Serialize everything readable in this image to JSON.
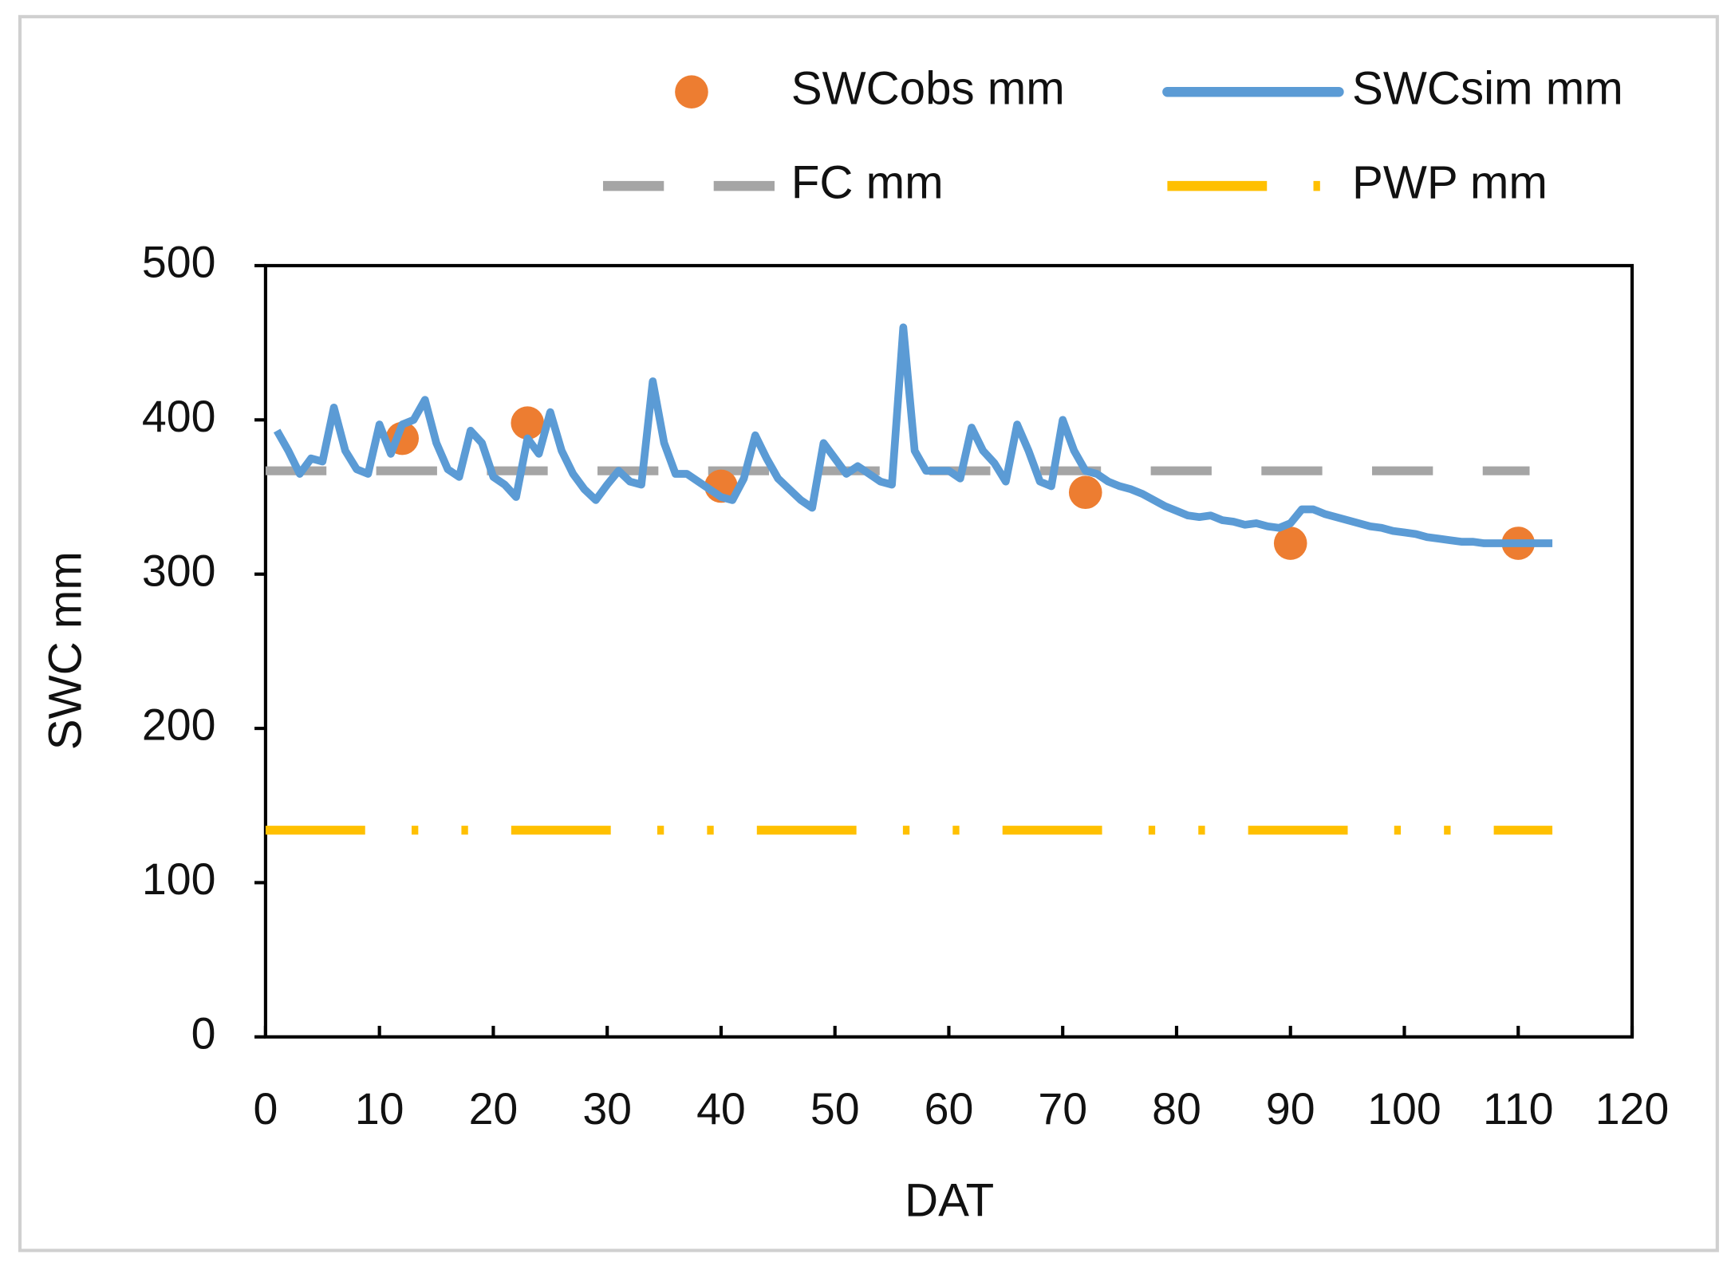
{
  "chart_data": {
    "type": "line",
    "xlabel": "DAT",
    "ylabel": "SWC mm",
    "xlim": [
      0,
      120
    ],
    "xticks": [
      0,
      10,
      20,
      30,
      40,
      50,
      60,
      70,
      80,
      90,
      100,
      110,
      120
    ],
    "ylim": [
      0,
      500
    ],
    "yticks": [
      0,
      100,
      200,
      300,
      400,
      500
    ],
    "legend": "top",
    "series": [
      {
        "name": "SWCobs mm",
        "type": "scatter",
        "color": "#ed7d31",
        "x": [
          12,
          23,
          40,
          72,
          90,
          110
        ],
        "values": [
          388,
          398,
          357,
          353,
          320,
          320
        ]
      },
      {
        "name": "SWCsim mm",
        "type": "line",
        "color": "#5b9bd5",
        "dash": "solid",
        "x": [
          1,
          2,
          3,
          4,
          5,
          6,
          7,
          8,
          9,
          10,
          11,
          12,
          13,
          14,
          15,
          16,
          17,
          18,
          19,
          20,
          21,
          22,
          23,
          24,
          25,
          26,
          27,
          28,
          29,
          30,
          31,
          32,
          33,
          34,
          35,
          36,
          37,
          38,
          39,
          40,
          41,
          42,
          43,
          44,
          45,
          46,
          47,
          48,
          49,
          50,
          51,
          52,
          53,
          54,
          55,
          56,
          57,
          58,
          59,
          60,
          61,
          62,
          63,
          64,
          65,
          66,
          67,
          68,
          69,
          70,
          71,
          72,
          73,
          74,
          75,
          76,
          77,
          78,
          79,
          80,
          81,
          82,
          83,
          84,
          85,
          86,
          87,
          88,
          89,
          90,
          91,
          92,
          93,
          94,
          95,
          96,
          97,
          98,
          99,
          100,
          101,
          102,
          103,
          104,
          105,
          106,
          107,
          108,
          109,
          110,
          111,
          112,
          113
        ],
        "values": [
          393,
          380,
          365,
          375,
          373,
          408,
          380,
          368,
          365,
          397,
          378,
          397,
          400,
          413,
          385,
          368,
          363,
          393,
          385,
          363,
          358,
          350,
          388,
          378,
          405,
          380,
          365,
          355,
          348,
          358,
          367,
          360,
          358,
          425,
          385,
          365,
          365,
          360,
          355,
          350,
          348,
          362,
          390,
          375,
          362,
          355,
          348,
          343,
          385,
          375,
          365,
          370,
          365,
          360,
          358,
          460,
          380,
          367,
          367,
          367,
          362,
          395,
          380,
          372,
          360,
          397,
          380,
          360,
          357,
          400,
          380,
          367,
          365,
          360,
          357,
          355,
          352,
          348,
          344,
          341,
          338,
          337,
          338,
          335,
          334,
          332,
          333,
          331,
          330,
          333,
          342,
          342,
          339,
          337,
          335,
          333,
          331,
          330,
          328,
          327,
          326,
          324,
          323,
          322,
          321,
          321,
          320,
          320,
          320,
          320,
          320,
          320,
          320
        ]
      },
      {
        "name": "FC mm",
        "type": "line",
        "color": "#a5a5a5",
        "dash": "dashed",
        "x": [
          0,
          111
        ],
        "values": [
          367,
          367
        ]
      },
      {
        "name": "PWP mm",
        "type": "line",
        "color": "#ffc000",
        "dash": "dashdotdot",
        "x": [
          0,
          113
        ],
        "values": [
          134,
          134
        ]
      }
    ]
  }
}
